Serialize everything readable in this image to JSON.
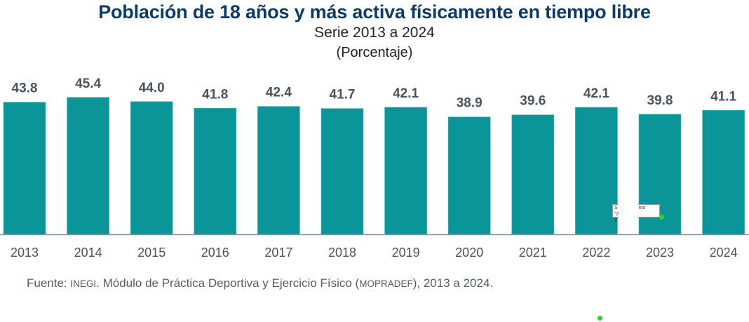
{
  "chart_data": {
    "type": "bar",
    "title": "Población de 18 años y más activa físicamente en tiempo libre",
    "subtitle": "Serie 2013 a 2024",
    "units": "(Porcentaje)",
    "categories": [
      "2013",
      "2014",
      "2015",
      "2016",
      "2017",
      "2018",
      "2019",
      "2020",
      "2021",
      "2022",
      "2023",
      "2024"
    ],
    "values": [
      43.8,
      45.4,
      44.0,
      41.8,
      42.4,
      41.7,
      42.1,
      38.9,
      39.6,
      42.1,
      39.8,
      41.1
    ],
    "value_labels": [
      "43.8",
      "45.4",
      "44.0",
      "41.8",
      "42.4",
      "41.7",
      "42.1",
      "38.9",
      "39.6",
      "42.1",
      "39.8",
      "41.1"
    ],
    "xlabel": "",
    "ylabel": "",
    "ylim": [
      0,
      46
    ],
    "grid": false,
    "legend": "none",
    "bar_color": "#0a9699"
  },
  "footer": {
    "prefix": "Fuente: ",
    "org": "INEGI",
    "middle": ". Módulo de Práctica Deportiva y Ejercicio Físico (",
    "acronym": "MOPRADEF",
    "suffix": "), 2013 a 2024."
  },
  "tooltip": {
    "line1_start": "S",
    "line1_end": "nto \"2022\"",
    "line2_start": "V"
  },
  "colors": {
    "title": "#0c3c66",
    "bar": "#0a9699",
    "label": "#4a535e",
    "cursor_dot": "#22dd22"
  }
}
